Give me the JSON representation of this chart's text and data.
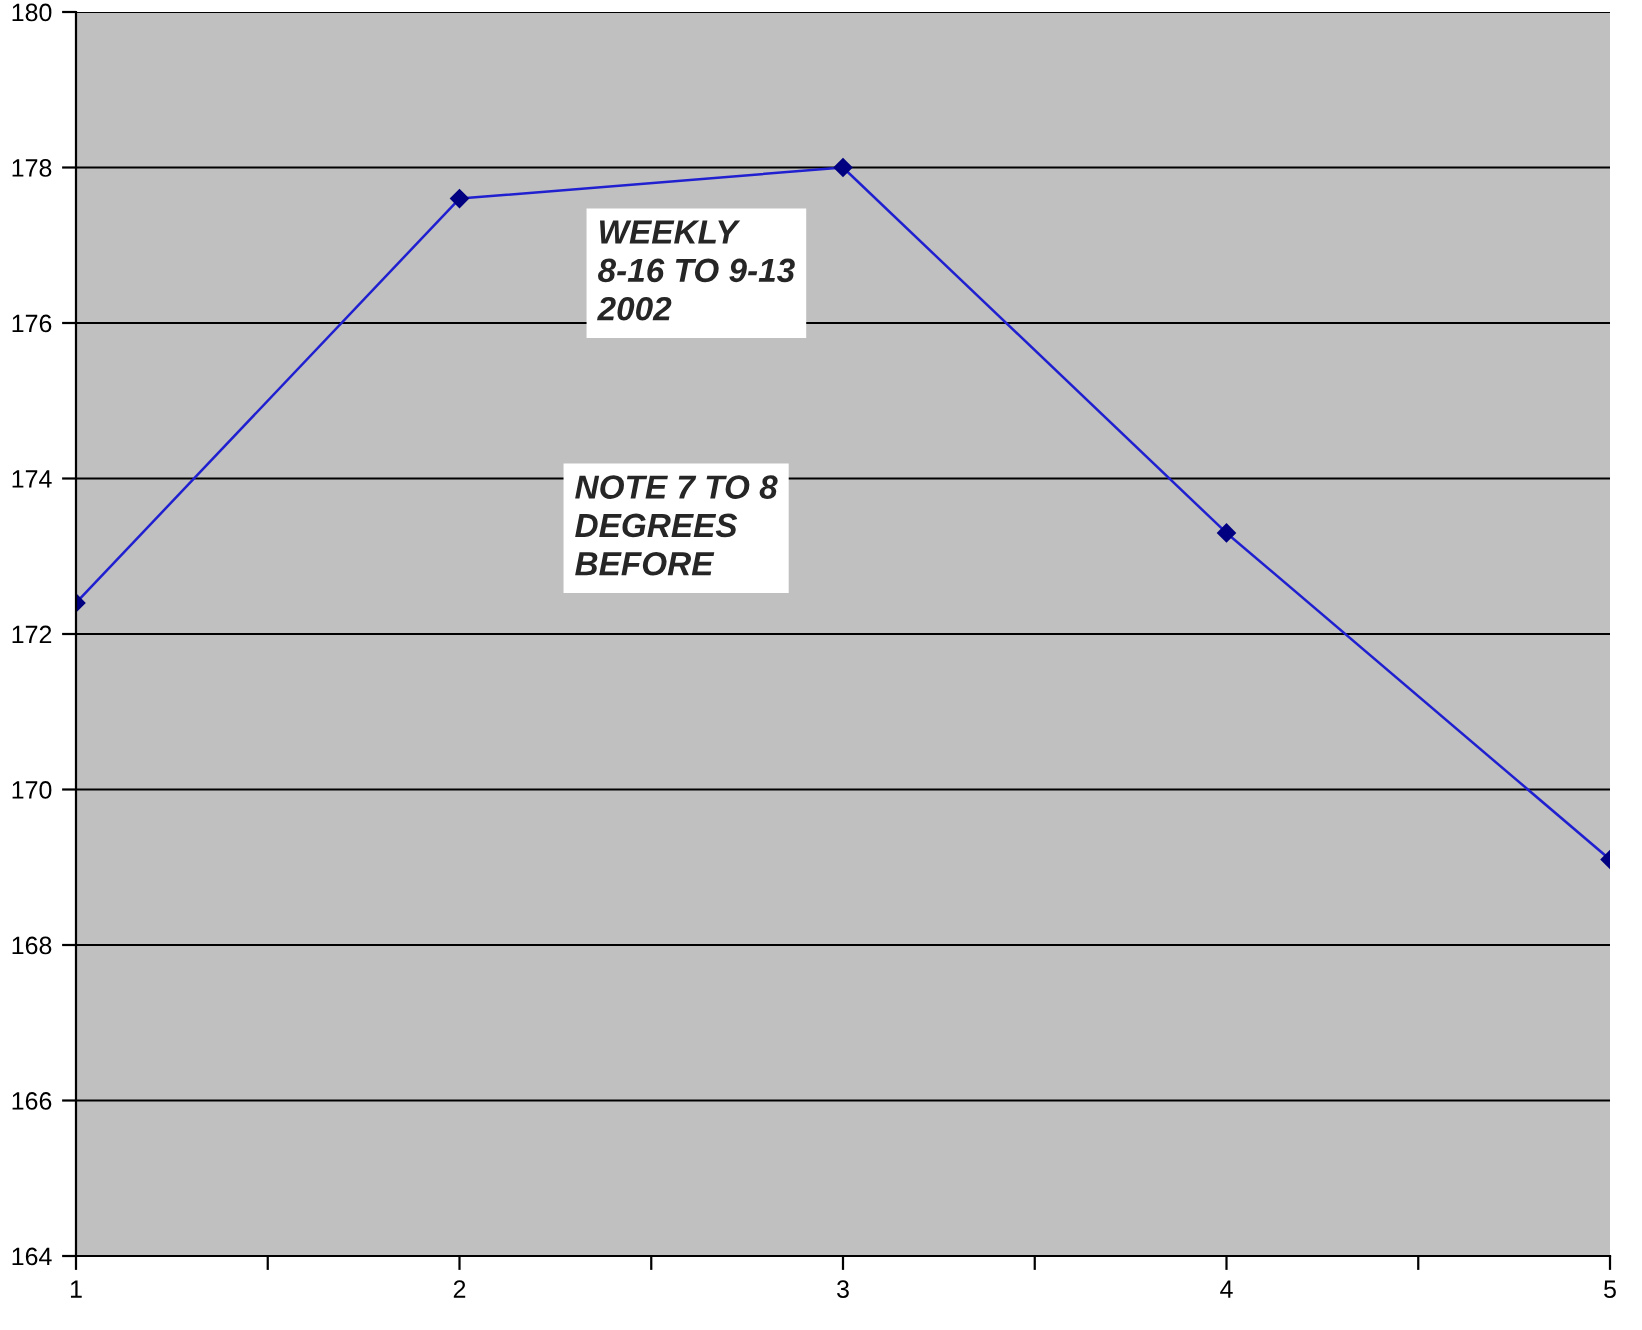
{
  "chart_data": {
    "type": "line",
    "x": [
      1,
      2,
      3,
      4,
      5
    ],
    "series": [
      {
        "color": "#000080",
        "values": [
          172.4,
          177.6,
          178.0,
          173.3,
          169.1
        ]
      }
    ],
    "xlim": [
      1,
      5
    ],
    "xticks": [
      1,
      {
        "value": 1.5,
        "label": null
      },
      2,
      {
        "value": 2.5,
        "label": null
      },
      3,
      {
        "value": 3.5,
        "label": null
      },
      4,
      {
        "value": 4.5,
        "label": null
      },
      5
    ],
    "ylim": [
      164,
      180
    ],
    "yticks": [
      164,
      166,
      168,
      170,
      172,
      174,
      176,
      178,
      180
    ],
    "grid": "y",
    "marker": "diamond",
    "line_style": "solid",
    "annotations": [
      "WEEKLY\n8-16 TO 9-13\n2002",
      "NOTE 7 TO 8\nDEGREES\nBEFORE"
    ]
  }
}
